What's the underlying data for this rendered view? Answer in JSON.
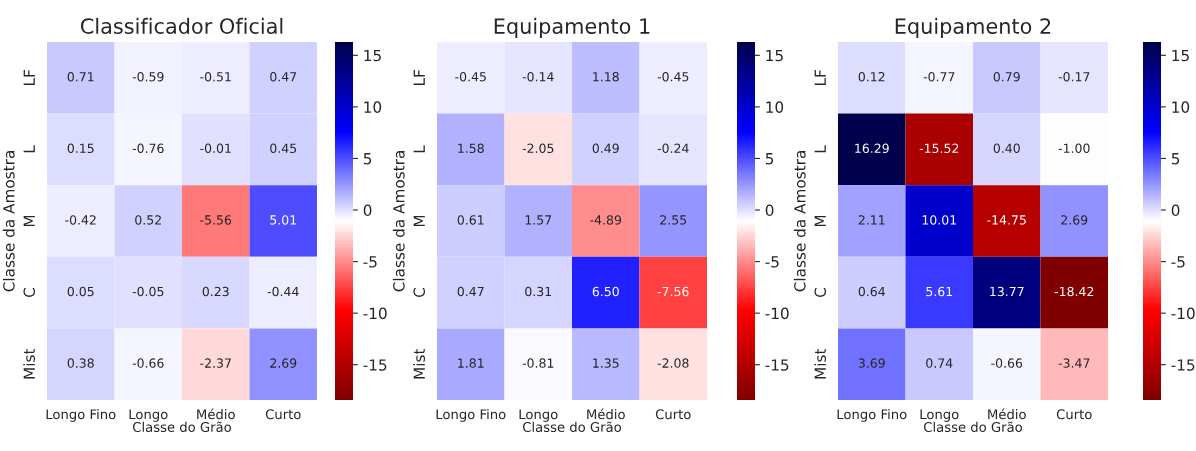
{
  "chart_data": [
    {
      "type": "heatmap",
      "title": "Classificador Oficial",
      "xlabel": "Classe do Grão",
      "ylabel": "Classe da Amostra",
      "categories": [
        "Longo Fino",
        "Longo",
        "Médio",
        "Curto"
      ],
      "y_categories": [
        "LF",
        "L",
        "M",
        "C",
        "Mist"
      ],
      "cells": [
        [
          0.71,
          -0.59,
          -0.51,
          0.47
        ],
        [
          0.15,
          -0.76,
          -0.01,
          0.45
        ],
        [
          -0.42,
          0.52,
          -5.56,
          5.01
        ],
        [
          0.05,
          -0.05,
          0.23,
          -0.44
        ],
        [
          0.38,
          -0.66,
          -2.37,
          2.69
        ]
      ],
      "clim": [
        -18.42,
        16.29
      ],
      "cticks": [
        -15,
        -10,
        -5,
        0,
        5,
        10,
        15
      ],
      "data_labels": true
    },
    {
      "type": "heatmap",
      "title": "Equipamento 1",
      "xlabel": "Classe do Grão",
      "ylabel": "Classe da Amostra",
      "categories": [
        "Longo Fino",
        "Longo",
        "Médio",
        "Curto"
      ],
      "y_categories": [
        "LF",
        "L",
        "M",
        "C",
        "Mist"
      ],
      "cells": [
        [
          -0.45,
          -0.14,
          1.18,
          -0.45
        ],
        [
          1.58,
          -2.05,
          0.49,
          -0.24
        ],
        [
          0.61,
          1.57,
          -4.89,
          2.55
        ],
        [
          0.47,
          0.31,
          6.5,
          -7.56
        ],
        [
          1.81,
          -0.81,
          1.35,
          -2.08
        ]
      ],
      "cell_labels": [
        [
          "-0.45",
          "-0.14",
          "1.18",
          "-0.45"
        ],
        [
          "1.58",
          "-2.05",
          "0.49",
          "-0.24"
        ],
        [
          "0.61",
          "1.57",
          "-4.89",
          "2.55"
        ],
        [
          "0.47",
          "0.31",
          "6.50",
          "-7.56"
        ],
        [
          "1.81",
          "-0.81",
          "1.35",
          "-2.08"
        ]
      ],
      "clim": [
        -18.42,
        16.29
      ],
      "cticks": [
        -15,
        -10,
        -5,
        0,
        5,
        10,
        15
      ],
      "data_labels": true
    },
    {
      "type": "heatmap",
      "title": "Equipamento 2",
      "xlabel": "Classe do Grão",
      "ylabel": "Classe da Amostra",
      "categories": [
        "Longo Fino",
        "Longo",
        "Médio",
        "Curto"
      ],
      "y_categories": [
        "LF",
        "L",
        "M",
        "C",
        "Mist"
      ],
      "cells": [
        [
          0.12,
          -0.77,
          0.79,
          -0.17
        ],
        [
          16.29,
          -15.52,
          0.4,
          -1.0
        ],
        [
          2.11,
          10.01,
          -14.75,
          2.69
        ],
        [
          0.64,
          5.61,
          13.77,
          -18.42
        ],
        [
          3.69,
          0.74,
          -0.66,
          -3.47
        ]
      ],
      "cell_labels": [
        [
          "0.12",
          "-0.77",
          "0.79",
          "-0.17"
        ],
        [
          "16.29",
          "-15.52",
          "0.40",
          "-1.00"
        ],
        [
          "2.11",
          "10.01",
          "-14.75",
          "2.69"
        ],
        [
          "0.64",
          "5.61",
          "13.77",
          "-18.42"
        ],
        [
          "3.69",
          "0.74",
          "-0.66",
          "-3.47"
        ]
      ],
      "clim": [
        -18.42,
        16.29
      ],
      "cticks": [
        -15,
        -10,
        -5,
        0,
        5,
        10,
        15
      ],
      "data_labels": true
    }
  ]
}
